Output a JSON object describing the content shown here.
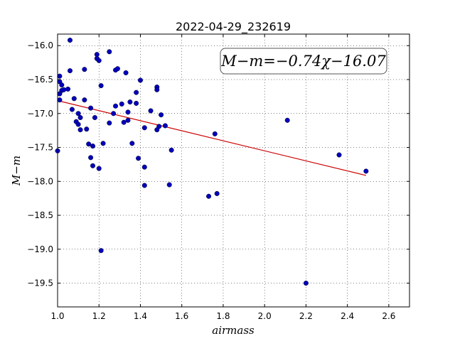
{
  "chart_data": {
    "type": "scatter",
    "title": "2022-04-29_232619",
    "xlabel": "airmass",
    "ylabel": "M−m",
    "xlim": [
      1.0,
      2.7
    ],
    "ylim": [
      -19.85,
      -15.83
    ],
    "xticks": [
      1.0,
      1.2,
      1.4,
      1.6,
      1.8,
      2.0,
      2.2,
      2.4,
      2.6
    ],
    "xtick_labels": [
      "1.0",
      "1.2",
      "1.4",
      "1.6",
      "1.8",
      "2.0",
      "2.2",
      "2.4",
      "2.6"
    ],
    "yticks": [
      -16.0,
      -16.5,
      -17.0,
      -17.5,
      -18.0,
      -18.5,
      -19.0,
      -19.5
    ],
    "ytick_labels": [
      "−16.0",
      "−16.5",
      "−17.0",
      "−17.5",
      "−18.0",
      "−18.5",
      "−19.0",
      "−19.5"
    ],
    "grid": true,
    "annotation": "M−m=−0.74χ−16.07",
    "annotation_position": "top-right",
    "point_color": "#0000bb",
    "fit_color": "#cc0000",
    "fit": {
      "slope": -0.74,
      "intercept": -16.07,
      "x_range": [
        1.0,
        2.49
      ]
    },
    "points": [
      [
        1.0,
        -17.55
      ],
      [
        1.01,
        -16.45
      ],
      [
        1.01,
        -16.53
      ],
      [
        1.01,
        -16.8
      ],
      [
        1.01,
        -16.71
      ],
      [
        1.02,
        -16.58
      ],
      [
        1.02,
        -16.66
      ],
      [
        1.03,
        -16.65
      ],
      [
        1.05,
        -16.64
      ],
      [
        1.06,
        -16.37
      ],
      [
        1.06,
        -15.92
      ],
      [
        1.07,
        -16.94
      ],
      [
        1.08,
        -16.78
      ],
      [
        1.09,
        -17.12
      ],
      [
        1.1,
        -17.16
      ],
      [
        1.1,
        -17.0
      ],
      [
        1.11,
        -17.06
      ],
      [
        1.11,
        -17.24
      ],
      [
        1.13,
        -16.8
      ],
      [
        1.13,
        -16.35
      ],
      [
        1.14,
        -17.23
      ],
      [
        1.15,
        -17.45
      ],
      [
        1.16,
        -16.92
      ],
      [
        1.16,
        -17.65
      ],
      [
        1.17,
        -17.77
      ],
      [
        1.17,
        -17.48
      ],
      [
        1.18,
        -17.06
      ],
      [
        1.19,
        -16.13
      ],
      [
        1.19,
        -16.19
      ],
      [
        1.2,
        -16.22
      ],
      [
        1.2,
        -17.81
      ],
      [
        1.21,
        -16.59
      ],
      [
        1.21,
        -19.02
      ],
      [
        1.22,
        -17.44
      ],
      [
        1.25,
        -16.09
      ],
      [
        1.25,
        -17.14
      ],
      [
        1.27,
        -17.0
      ],
      [
        1.28,
        -16.89
      ],
      [
        1.28,
        -16.36
      ],
      [
        1.29,
        -16.34
      ],
      [
        1.31,
        -16.86
      ],
      [
        1.32,
        -17.13
      ],
      [
        1.33,
        -16.4
      ],
      [
        1.34,
        -16.98
      ],
      [
        1.34,
        -17.1
      ],
      [
        1.35,
        -16.83
      ],
      [
        1.36,
        -17.44
      ],
      [
        1.38,
        -16.85
      ],
      [
        1.38,
        -16.69
      ],
      [
        1.39,
        -17.66
      ],
      [
        1.4,
        -16.51
      ],
      [
        1.42,
        -17.79
      ],
      [
        1.42,
        -18.06
      ],
      [
        1.42,
        -17.21
      ],
      [
        1.45,
        -16.96
      ],
      [
        1.48,
        -17.24
      ],
      [
        1.48,
        -16.61
      ],
      [
        1.48,
        -16.65
      ],
      [
        1.49,
        -17.19
      ],
      [
        1.5,
        -17.02
      ],
      [
        1.52,
        -17.18
      ],
      [
        1.54,
        -18.05
      ],
      [
        1.55,
        -17.54
      ],
      [
        1.73,
        -18.22
      ],
      [
        1.76,
        -17.3
      ],
      [
        1.77,
        -18.18
      ],
      [
        2.11,
        -17.1
      ],
      [
        2.2,
        -19.5
      ],
      [
        2.36,
        -17.61
      ],
      [
        2.49,
        -17.85
      ]
    ]
  }
}
